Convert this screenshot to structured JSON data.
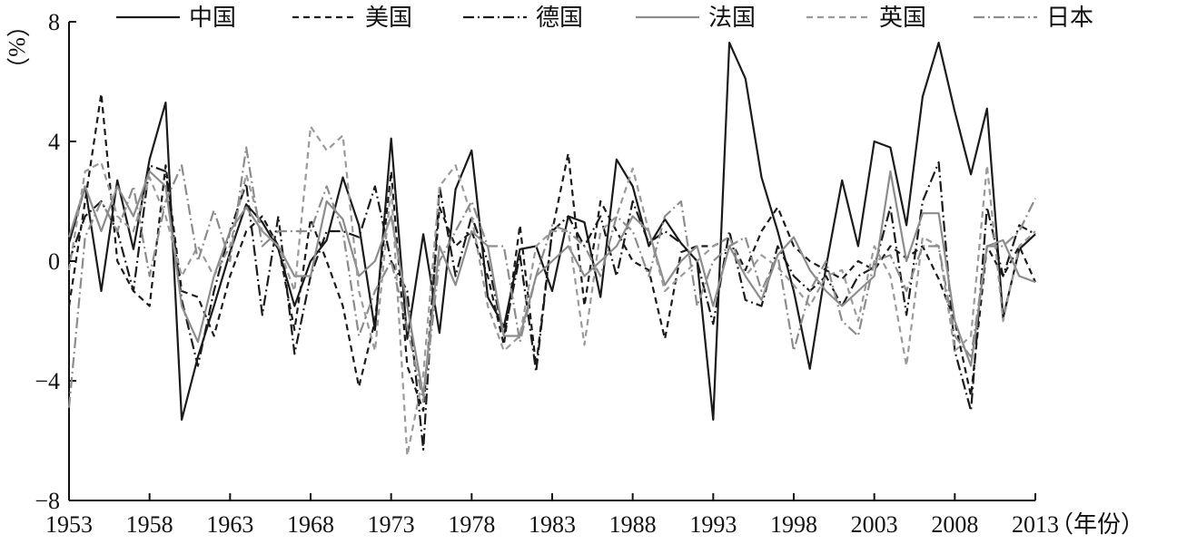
{
  "chart_data": {
    "type": "line",
    "xlabel": "（年份）",
    "ylabel": "（%）",
    "xlim": [
      1953,
      2013
    ],
    "ylim": [
      -8,
      8
    ],
    "xticks": [
      1953,
      1958,
      1963,
      1968,
      1973,
      1978,
      1983,
      1988,
      1993,
      1998,
      2003,
      2008,
      2013
    ],
    "yticks": [
      -8,
      -4,
      0,
      4,
      8
    ],
    "ytick_labels": [
      "−8",
      "−4",
      "0",
      "4",
      "8"
    ],
    "legend_position": "top",
    "x": [
      1953,
      1954,
      1955,
      1956,
      1957,
      1958,
      1959,
      1960,
      1961,
      1962,
      1963,
      1964,
      1965,
      1966,
      1967,
      1968,
      1969,
      1970,
      1971,
      1972,
      1973,
      1974,
      1975,
      1976,
      1977,
      1978,
      1979,
      1980,
      1981,
      1982,
      1983,
      1984,
      1985,
      1986,
      1987,
      1988,
      1989,
      1990,
      1991,
      1992,
      1993,
      1994,
      1995,
      1996,
      1997,
      1998,
      1999,
      2000,
      2001,
      2002,
      2003,
      2004,
      2005,
      2006,
      2007,
      2008,
      2009,
      2010,
      2011,
      2012,
      2013
    ],
    "series": [
      {
        "name": "中国",
        "color": "#1a1a1a",
        "dash": "solid",
        "values": [
          0.6,
          2.5,
          -1.0,
          2.7,
          0.4,
          3.4,
          5.3,
          -5.3,
          -3.2,
          -1.5,
          0.3,
          1.9,
          1.3,
          0.4,
          -1.5,
          0.0,
          0.7,
          2.8,
          1.2,
          -2.3,
          4.1,
          -2.6,
          0.9,
          -2.4,
          2.4,
          3.7,
          -1.2,
          -2.2,
          0.4,
          0.5,
          -1.0,
          1.5,
          1.3,
          -1.2,
          3.4,
          2.5,
          0.5,
          1.4,
          0.6,
          0.0,
          -5.3,
          7.3,
          6.1,
          2.8,
          1.0,
          -1.0,
          -3.6,
          -0.2,
          2.7,
          0.5,
          4.0,
          3.8,
          1.2,
          5.5,
          7.3,
          5.0,
          2.9,
          5.1,
          -1.9,
          0.4,
          0.9
        ]
      },
      {
        "name": "美国",
        "color": "#1a1a1a",
        "dash": "7,5",
        "values": [
          -1.5,
          2.0,
          5.6,
          0.0,
          -1.0,
          -1.5,
          3.2,
          -1.0,
          -1.2,
          -2.5,
          -0.5,
          1.0,
          1.5,
          0.5,
          -2.3,
          1.4,
          0.0,
          -1.5,
          -4.2,
          -2.0,
          3.0,
          -3.5,
          -5.0,
          1.8,
          0.5,
          1.0,
          -0.5,
          -2.8,
          1.2,
          -3.5,
          1.0,
          3.6,
          -1.5,
          2.0,
          1.0,
          0.0,
          -0.3,
          -2.6,
          0.3,
          0.5,
          0.5,
          0.8,
          -0.3,
          1.0,
          1.8,
          0.5,
          0.0,
          -0.3,
          -0.6,
          0.0,
          -0.3,
          0.5,
          0.1,
          0.5,
          -0.6,
          -2.0,
          -4.5,
          0.5,
          -0.5,
          0.5,
          -0.7
        ]
      },
      {
        "name": "德国",
        "color": "#1a1a1a",
        "dash": "12,4,2,4",
        "values": [
          0.0,
          1.5,
          2.0,
          1.0,
          -1.0,
          3.2,
          3.0,
          -1.3,
          -3.5,
          -1.0,
          1.0,
          2.6,
          -1.8,
          1.5,
          -3.1,
          -0.5,
          1.0,
          1.0,
          0.8,
          2.5,
          0.0,
          -1.0,
          -6.3,
          2.5,
          -0.5,
          1.5,
          0.0,
          -2.5,
          0.2,
          -3.7,
          1.0,
          1.5,
          0.5,
          1.5,
          -0.5,
          2.0,
          0.6,
          1.0,
          0.6,
          0.0,
          -2.1,
          1.0,
          -1.3,
          -1.5,
          0.5,
          -0.5,
          -1.0,
          -0.5,
          -1.5,
          -0.5,
          -0.2,
          1.8,
          -1.8,
          2.0,
          3.3,
          -3.0,
          -5.0,
          1.8,
          -0.5,
          1.2,
          0.9
        ]
      },
      {
        "name": "法国",
        "color": "#8c8c8c",
        "dash": "solid",
        "values": [
          0.8,
          2.5,
          1.0,
          2.5,
          1.5,
          3.0,
          2.5,
          -1.5,
          -2.7,
          -0.5,
          1.0,
          1.8,
          1.0,
          0.5,
          -0.5,
          -0.5,
          2.0,
          1.4,
          -0.5,
          0.0,
          1.5,
          -1.5,
          -4.5,
          0.5,
          -0.8,
          1.0,
          0.5,
          -2.5,
          -2.5,
          -0.5,
          0.0,
          0.5,
          -0.5,
          0.0,
          0.5,
          1.5,
          1.0,
          -0.8,
          0.0,
          0.5,
          -1.5,
          0.5,
          -0.5,
          -1.3,
          0.2,
          0.8,
          -0.3,
          -1.0,
          -1.5,
          -1.0,
          -0.5,
          3.0,
          0.0,
          1.6,
          1.6,
          -2.0,
          -3.5,
          0.5,
          0.7,
          -0.5,
          -0.7
        ]
      },
      {
        "name": "英国",
        "color": "#9a9a9a",
        "dash": "7,5",
        "values": [
          -0.3,
          3.0,
          3.3,
          1.5,
          1.0,
          2.8,
          1.5,
          -0.5,
          0.5,
          -0.5,
          0.5,
          2.9,
          1.0,
          0.5,
          -1.0,
          4.5,
          3.7,
          4.2,
          -1.0,
          -3.0,
          2.5,
          -6.5,
          -3.8,
          2.5,
          3.2,
          1.5,
          -1.5,
          -3.0,
          -2.5,
          0.5,
          1.0,
          1.0,
          -2.8,
          1.0,
          1.5,
          3.1,
          1.0,
          -1.0,
          -0.5,
          0.0,
          0.5,
          0.8,
          -0.5,
          0.2,
          -0.2,
          -0.8,
          -1.5,
          -0.5,
          -0.3,
          -2.0,
          0.5,
          -0.5,
          -3.5,
          0.8,
          0.5,
          -3.0,
          -2.5,
          3.2,
          -2.0,
          0.5,
          1.0
        ]
      },
      {
        "name": "日本",
        "color": "#8c8c8c",
        "dash": "12,4,2,4",
        "values": [
          -4.9,
          0.8,
          2.0,
          1.0,
          2.5,
          -0.5,
          2.0,
          3.2,
          0.0,
          1.7,
          0.0,
          3.8,
          0.5,
          1.0,
          1.0,
          1.0,
          2.5,
          1.0,
          -2.5,
          -1.0,
          0.0,
          -2.2,
          -4.7,
          0.0,
          1.0,
          2.0,
          0.5,
          0.5,
          -2.7,
          -0.5,
          1.2,
          1.0,
          0.5,
          -0.5,
          1.5,
          1.0,
          -0.5,
          1.5,
          2.0,
          -1.5,
          0.0,
          0.5,
          0.8,
          -1.0,
          0.2,
          -3.0,
          -1.0,
          0.0,
          -2.0,
          -2.5,
          0.0,
          0.2,
          -1.0,
          0.5,
          0.5,
          -2.5,
          -3.2,
          0.5,
          0.5,
          1.0,
          2.1
        ]
      }
    ]
  }
}
